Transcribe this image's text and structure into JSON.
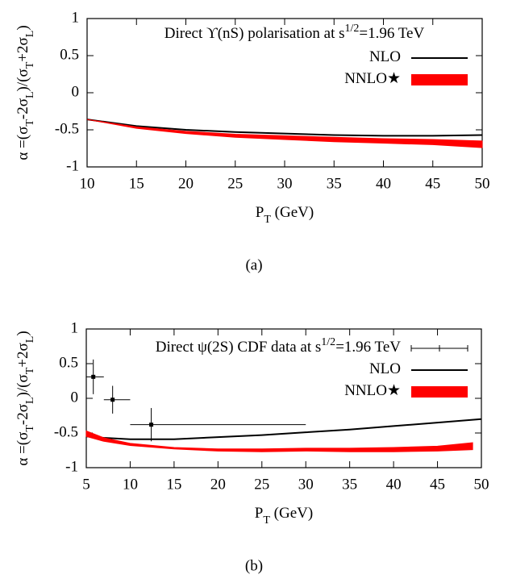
{
  "chart_data": [
    {
      "type": "line",
      "caption": "(a)",
      "title_parts": [
        "Direct ϒ(nS) polarisation  at s",
        "1/2",
        "=1.96 TeV"
      ],
      "xlabel_parts": [
        "P",
        "T",
        " (GeV)"
      ],
      "ylabel_parts": [
        "α =(σ",
        "T",
        "-2σ",
        "L",
        ")/(σ",
        "T",
        "+2σ",
        "L",
        ")"
      ],
      "xlim": [
        10,
        50
      ],
      "xticks": [
        10,
        15,
        20,
        25,
        30,
        35,
        40,
        45,
        50
      ],
      "ylim": [
        -1,
        1
      ],
      "yticks": [
        1,
        0.5,
        0,
        -0.5,
        -1
      ],
      "series": [
        {
          "name": "NLO",
          "color": "#000000",
          "x": [
            10,
            15,
            20,
            25,
            30,
            35,
            40,
            45,
            50
          ],
          "values": [
            -0.36,
            -0.45,
            -0.5,
            -0.53,
            -0.55,
            -0.57,
            -0.58,
            -0.58,
            -0.57
          ]
        },
        {
          "name": "NNLO★",
          "color": "#ff0000",
          "x": [
            10,
            15,
            20,
            25,
            30,
            35,
            40,
            45,
            50
          ],
          "high": [
            -0.36,
            -0.46,
            -0.52,
            -0.56,
            -0.58,
            -0.6,
            -0.62,
            -0.63,
            -0.65
          ],
          "low": [
            -0.36,
            -0.48,
            -0.55,
            -0.6,
            -0.63,
            -0.66,
            -0.68,
            -0.7,
            -0.74
          ]
        }
      ]
    },
    {
      "type": "line",
      "caption": "(b)",
      "xlabel_parts": [
        "P",
        "T",
        " (GeV)"
      ],
      "ylabel_parts": [
        "α =(σ",
        "T",
        "-2σ",
        "L",
        ")/(σ",
        "T",
        "+2σ",
        "L",
        ")"
      ],
      "xlim": [
        5,
        50
      ],
      "xticks": [
        5,
        10,
        15,
        20,
        25,
        30,
        35,
        40,
        45,
        50
      ],
      "ylim": [
        -1,
        1
      ],
      "yticks": [
        1,
        0.5,
        0,
        -0.5,
        -1
      ],
      "series": [
        {
          "name": [
            "Direct ψ(2S) CDF data at s",
            "1/2",
            "=1.96 TeV"
          ],
          "color": "#000000",
          "x": [
            5.8,
            8,
            12.4
          ],
          "values": [
            0.31,
            -0.02,
            -0.38
          ],
          "xlow": [
            5,
            7,
            10
          ],
          "xhigh": [
            7,
            10,
            30
          ],
          "yerr": [
            0.25,
            0.2,
            0.24
          ]
        },
        {
          "name": "NLO",
          "color": "#000000",
          "x": [
            5,
            7,
            10,
            15,
            20,
            25,
            30,
            35,
            40,
            45,
            50
          ],
          "values": [
            -0.55,
            -0.57,
            -0.59,
            -0.59,
            -0.56,
            -0.53,
            -0.49,
            -0.45,
            -0.4,
            -0.35,
            -0.3
          ]
        },
        {
          "name": "NNLO★",
          "color": "#ff0000",
          "x": [
            5,
            7,
            10,
            15,
            20,
            25,
            30,
            35,
            40,
            45,
            49
          ],
          "high": [
            -0.47,
            -0.57,
            -0.65,
            -0.71,
            -0.73,
            -0.73,
            -0.72,
            -0.72,
            -0.71,
            -0.69,
            -0.64
          ],
          "low": [
            -0.55,
            -0.62,
            -0.68,
            -0.73,
            -0.76,
            -0.77,
            -0.76,
            -0.77,
            -0.77,
            -0.76,
            -0.74
          ]
        }
      ]
    }
  ]
}
